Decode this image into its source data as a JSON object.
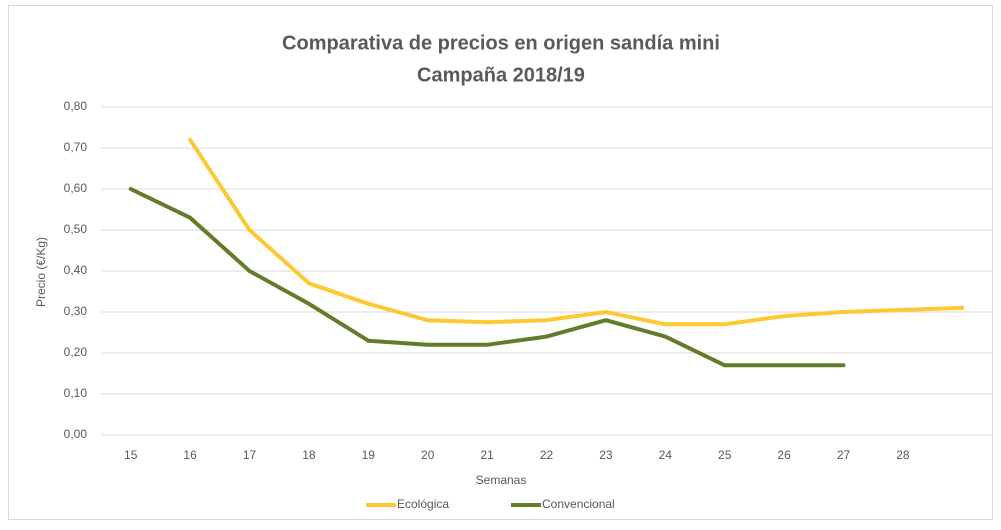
{
  "chart_data": {
    "type": "line",
    "title": "Comparativa de precios en origen sandía mini",
    "subtitle": "Campaña 2018/19",
    "y_label": "Precio (€/Kg)",
    "x_label": "Semanas",
    "categories": [
      "15",
      "16",
      "17",
      "18",
      "19",
      "20",
      "21",
      "22",
      "23",
      "24",
      "25",
      "26",
      "27",
      "28",
      null
    ],
    "series": [
      {
        "name": "Ecológica",
        "color": "#fcc932",
        "values": [
          null,
          0.72,
          0.5,
          0.37,
          0.32,
          0.28,
          0.275,
          0.28,
          0.3,
          0.27,
          0.27,
          0.29,
          0.3,
          0.305,
          0.31
        ]
      },
      {
        "name": "Convencional",
        "color": "#637c2a",
        "values": [
          0.6,
          0.53,
          0.4,
          0.32,
          0.23,
          0.22,
          0.22,
          0.24,
          0.28,
          0.24,
          0.17,
          0.17,
          0.17,
          null,
          null
        ]
      }
    ],
    "ylim": [
      0,
      0.8
    ],
    "yticks": [
      {
        "value": 0,
        "label": "0,00"
      },
      {
        "value": 0.1,
        "label": "0,10"
      },
      {
        "value": 0.2,
        "label": "0,20"
      },
      {
        "value": 0.3,
        "label": "0,30"
      },
      {
        "value": 0.4,
        "label": "0,40"
      },
      {
        "value": 0.5,
        "label": "0,50"
      },
      {
        "value": 0.6,
        "label": "0,60"
      },
      {
        "value": 0.7,
        "label": "0,70"
      },
      {
        "value": 0.8,
        "label": "0,80"
      }
    ],
    "grid": true,
    "legend": "bottom"
  }
}
